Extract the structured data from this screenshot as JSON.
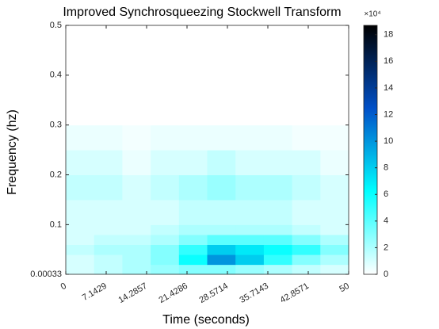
{
  "chart_data": {
    "type": "heatmap",
    "title": "Improved Synchrosqueezing Stockwell Transform",
    "xlabel": "Time (seconds)",
    "ylabel": "Frequency (hz)",
    "xlim": [
      0,
      50
    ],
    "xticks": [
      0,
      7.1429,
      14.2857,
      21.4286,
      28.5714,
      35.7143,
      42.8571,
      50
    ],
    "ylim": [
      0.00033,
      0.5
    ],
    "yticks": [
      0.00033,
      0.1,
      0.2,
      0.3,
      0.4,
      0.5
    ],
    "xbins": [
      0,
      5,
      10,
      15,
      20,
      25,
      30,
      35,
      40,
      45,
      50
    ],
    "ybins": [
      0.00033,
      0.02,
      0.04,
      0.06,
      0.08,
      0.1,
      0.15,
      0.2,
      0.25,
      0.3,
      0.5
    ],
    "z": [
      [
        1,
        1.5,
        2,
        2.5,
        3,
        3,
        2.5,
        2,
        1.5,
        1
      ],
      [
        1,
        1.5,
        2,
        3,
        6,
        10,
        8,
        5,
        3,
        2
      ],
      [
        1.5,
        2,
        2,
        3,
        5,
        8,
        7,
        6,
        5,
        3
      ],
      [
        1,
        1.5,
        1.5,
        2,
        3,
        4,
        4,
        4,
        3,
        2
      ],
      [
        1,
        1,
        1,
        1.5,
        2,
        2,
        2,
        2,
        1.5,
        1
      ],
      [
        1,
        1,
        1,
        1,
        1.5,
        1.5,
        1.5,
        1.5,
        1,
        1
      ],
      [
        1.5,
        1.5,
        1,
        1.5,
        2,
        2.5,
        2,
        2,
        1.5,
        1
      ],
      [
        1,
        1,
        0.5,
        1,
        1,
        1.5,
        1,
        1,
        1,
        0.5
      ],
      [
        0.5,
        0.5,
        0.3,
        0.5,
        0.5,
        0.5,
        0.5,
        0.5,
        0.3,
        0.3
      ],
      [
        0,
        0,
        0,
        0,
        0,
        0,
        0,
        0,
        0,
        0
      ]
    ],
    "clim": [
      0,
      18.7
    ],
    "cticks": [
      0,
      2,
      4,
      6,
      8,
      10,
      12,
      14,
      16,
      18
    ],
    "colorbar_label": "×10⁴",
    "colormap": [
      "#ffffff",
      "#00ffff",
      "#0050c8",
      "#000000"
    ]
  }
}
